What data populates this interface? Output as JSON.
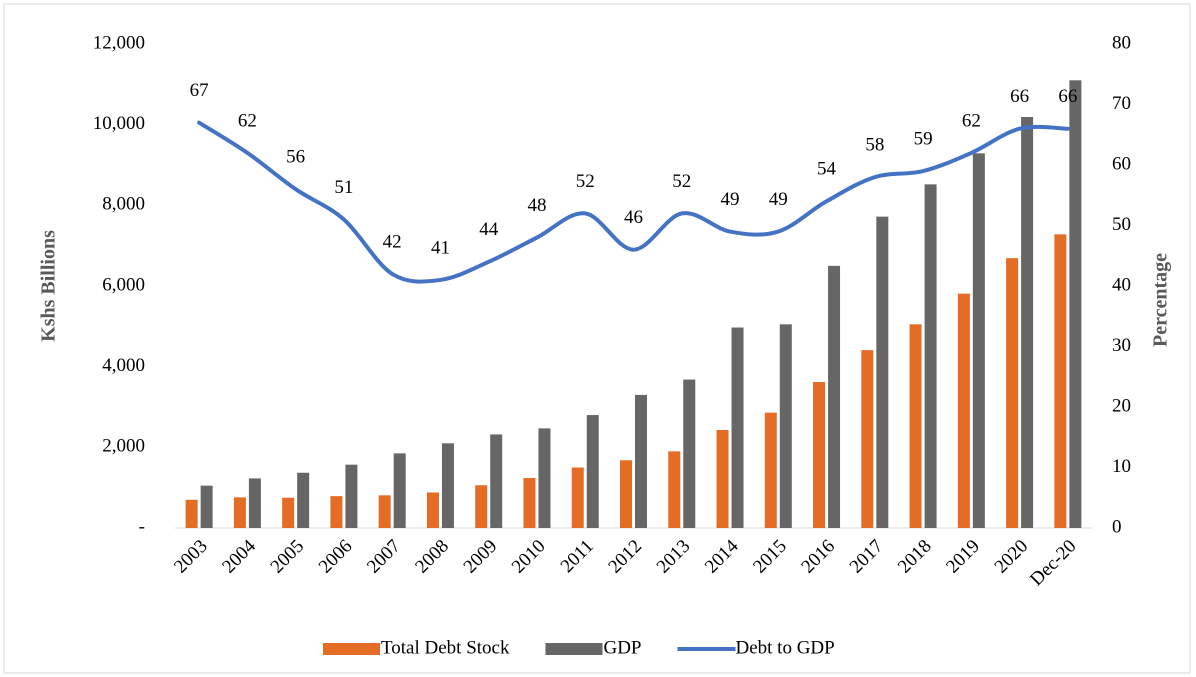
{
  "chart_data": {
    "type": "bar-line",
    "categories": [
      "2003",
      "2004",
      "2005",
      "2006",
      "2007",
      "2008",
      "2009",
      "2010",
      "2011",
      "2012",
      "2013",
      "2014",
      "2015",
      "2016",
      "2017",
      "2018",
      "2019",
      "2020",
      "Dec-20"
    ],
    "series": [
      {
        "name": "Total Debt Stock",
        "color": "#e46c24",
        "type": "bar",
        "values": [
          700,
          760,
          750,
          790,
          810,
          880,
          1060,
          1240,
          1500,
          1680,
          1900,
          2430,
          2860,
          3620,
          4410,
          5050,
          5810,
          6690,
          7280
        ]
      },
      {
        "name": "GDP",
        "color": "#666666",
        "type": "bar",
        "values": [
          1050,
          1230,
          1370,
          1570,
          1850,
          2100,
          2320,
          2470,
          2800,
          3300,
          3680,
          4970,
          5050,
          6500,
          7720,
          8520,
          9290,
          10190,
          11100
        ]
      },
      {
        "name": "Debt to GDP",
        "color": "#4472c4",
        "type": "line",
        "axis": "y2",
        "values": [
          67,
          62,
          56,
          51,
          42,
          41,
          44,
          48,
          52,
          46,
          52,
          49,
          49,
          54,
          58,
          59,
          62,
          66,
          66
        ]
      }
    ],
    "y_label": "Kshs Billions",
    "y2_label": "Percentage",
    "ylim": [
      0,
      12000
    ],
    "yticks": [
      {
        "value": 0,
        "label": "-"
      },
      {
        "value": 2000,
        "label": "2,000"
      },
      {
        "value": 4000,
        "label": "4,000"
      },
      {
        "value": 6000,
        "label": "6,000"
      },
      {
        "value": 8000,
        "label": "8,000"
      },
      {
        "value": 10000,
        "label": "10,000"
      },
      {
        "value": 12000,
        "label": "12,000"
      }
    ],
    "y2lim": [
      0,
      80
    ],
    "y2ticks": [
      0,
      10,
      20,
      30,
      40,
      50,
      60,
      70,
      80
    ],
    "legend": "bottom"
  }
}
